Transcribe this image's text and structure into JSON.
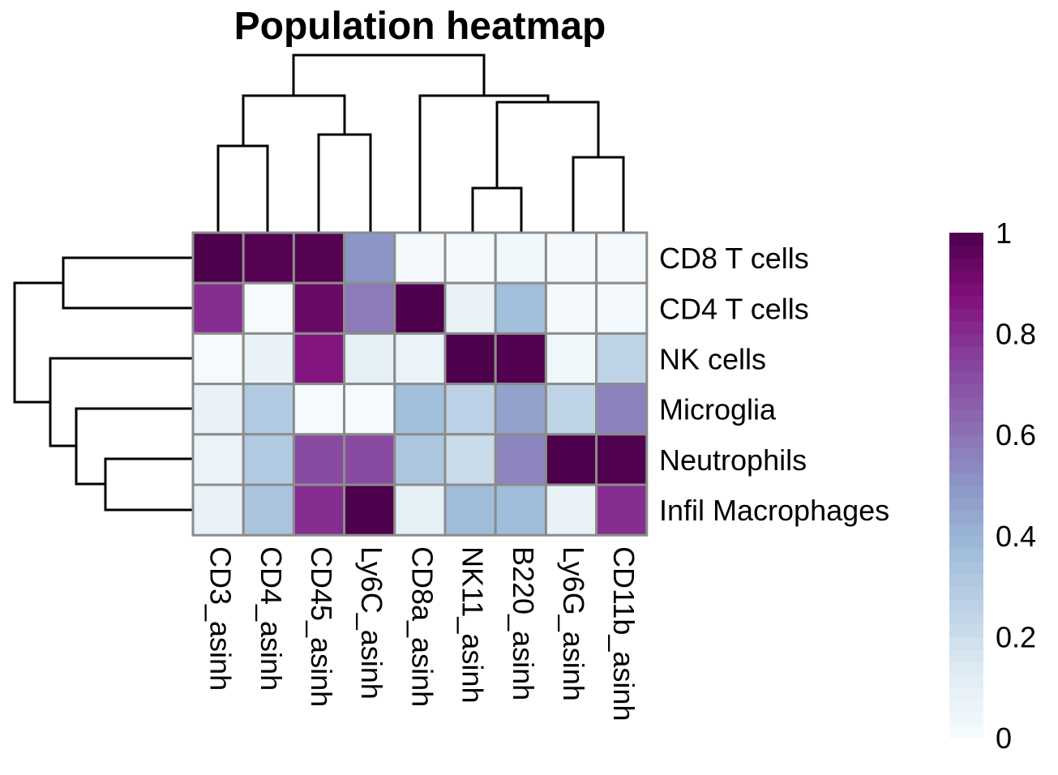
{
  "chart_data": {
    "type": "heatmap",
    "title": "Population heatmap",
    "rows": [
      "CD8 T cells",
      "CD4 T cells",
      "NK cells",
      "Microglia",
      "Neutrophils",
      "Infil Macrophages"
    ],
    "columns": [
      "CD3_asinh",
      "CD4_asinh",
      "CD45_asinh",
      "Ly6C_asinh",
      "CD8a_asinh",
      "NK11_asinh",
      "B220_asinh",
      "Ly6G_asinh",
      "CD11b_asinh"
    ],
    "values": [
      [
        1.0,
        0.98,
        0.98,
        0.5,
        0.02,
        0.02,
        0.03,
        0.02,
        0.02
      ],
      [
        0.8,
        0.01,
        0.93,
        0.58,
        1.0,
        0.08,
        0.36,
        0.02,
        0.02
      ],
      [
        0.01,
        0.08,
        0.86,
        0.1,
        0.07,
        1.0,
        0.99,
        0.04,
        0.25
      ],
      [
        0.08,
        0.3,
        0.01,
        0.01,
        0.36,
        0.26,
        0.46,
        0.25,
        0.56
      ],
      [
        0.07,
        0.3,
        0.72,
        0.72,
        0.32,
        0.21,
        0.55,
        1.0,
        0.99
      ],
      [
        0.08,
        0.33,
        0.8,
        1.0,
        0.1,
        0.37,
        0.37,
        0.08,
        0.8
      ]
    ],
    "colorbar": {
      "ticks": [
        "0",
        "0.2",
        "0.4",
        "0.6",
        "0.8",
        "1"
      ],
      "range": [
        0,
        1
      ],
      "colors": [
        "#f7fcfd",
        "#e0ecf4",
        "#bfd3e6",
        "#9ebcda",
        "#8c96c6",
        "#8c6bb1",
        "#88419d",
        "#810f7c",
        "#4d004b"
      ]
    },
    "cell_border_color": "#8c8c8c"
  }
}
